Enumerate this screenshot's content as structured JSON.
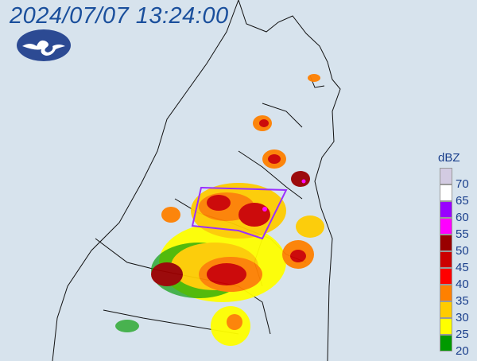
{
  "header": {
    "timestamp": "2024/07/07 13:24:00",
    "logo_icon": "weather-agency-cloud-logo"
  },
  "legend": {
    "unit": "dBZ",
    "colors": [
      "#d3cbe2",
      "#ffffff",
      "#9900ff",
      "#ff00ff",
      "#990000",
      "#cc0000",
      "#ff0000",
      "#ff8000",
      "#ffcc00",
      "#ffff00",
      "#009a00"
    ],
    "labels": [
      "70",
      "65",
      "60",
      "55",
      "50",
      "45",
      "40",
      "35",
      "30",
      "25",
      "20"
    ]
  },
  "map": {
    "warning_polygon_color": "#9b30ff",
    "coastline_color": "#000000"
  }
}
